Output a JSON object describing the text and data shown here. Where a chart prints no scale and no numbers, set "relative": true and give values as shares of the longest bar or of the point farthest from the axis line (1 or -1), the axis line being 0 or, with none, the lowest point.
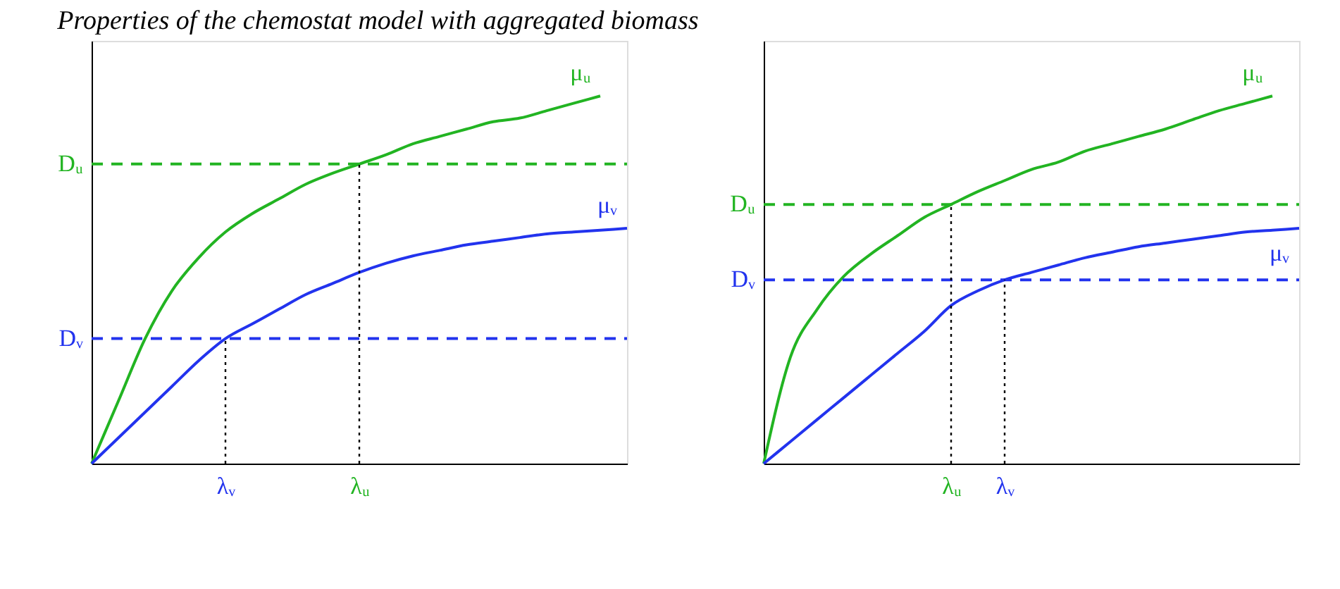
{
  "chart_data": [
    {
      "type": "line",
      "title": "Properties of the chemostat model with aggregated biomass",
      "relative": true,
      "tick_labels": "x",
      "grid": false,
      "legend": false,
      "categories": [
        null,
        null,
        null,
        null,
        null,
        "λᵥ",
        null,
        null,
        null,
        null,
        "λᵤ",
        null,
        null,
        null,
        null,
        null,
        null,
        null,
        null,
        null,
        null
      ],
      "series": [
        {
          "name": "μᵤ",
          "color": "#22b422",
          "values": [
            0,
            0.17,
            0.34,
            0.47,
            0.56,
            0.63,
            0.68,
            0.72,
            0.76,
            0.79,
            0.815,
            0.84,
            0.87,
            0.89,
            0.91,
            0.93,
            0.94,
            0.96,
            0.98,
            1,
            null
          ]
        },
        {
          "name": "μᵥ",
          "color": "#2233ee",
          "values": [
            0,
            0.07,
            0.14,
            0.21,
            0.28,
            0.34,
            0.38,
            0.42,
            0.46,
            0.49,
            0.52,
            0.545,
            0.565,
            0.58,
            0.595,
            0.605,
            0.615,
            0.625,
            0.63,
            0.635,
            0.64
          ]
        }
      ],
      "ref_lines": [
        {
          "axis": "y",
          "value": 0.815,
          "label": "Dᵤ",
          "color": "#22b422",
          "line_style": "dashed"
        },
        {
          "axis": "y",
          "value": 0.34,
          "label": "Dᵥ",
          "color": "#2233ee",
          "line_style": "dashed"
        },
        {
          "axis": "x",
          "value": "λᵥ",
          "color": "#000000",
          "line_style": "dotted"
        },
        {
          "axis": "x",
          "value": "λᵤ",
          "color": "#000000",
          "line_style": "dotted"
        }
      ]
    },
    {
      "type": "line",
      "relative": true,
      "tick_labels": "x",
      "grid": false,
      "legend": false,
      "categories": [
        null,
        null,
        null,
        null,
        null,
        null,
        null,
        "λᵤ",
        null,
        "λᵥ",
        null,
        null,
        null,
        null,
        null,
        null,
        null,
        null,
        null,
        null,
        null
      ],
      "series": [
        {
          "name": "μᵤ",
          "color": "#22b422",
          "values": [
            0,
            0.29,
            0.42,
            0.51,
            0.57,
            0.62,
            0.67,
            0.705,
            0.74,
            0.77,
            0.8,
            0.82,
            0.85,
            0.87,
            0.89,
            0.91,
            0.935,
            0.96,
            0.98,
            1,
            null
          ]
        },
        {
          "name": "μᵥ",
          "color": "#2233ee",
          "values": [
            0,
            0.06,
            0.12,
            0.18,
            0.24,
            0.3,
            0.36,
            0.43,
            0.47,
            0.5,
            0.52,
            0.54,
            0.56,
            0.575,
            0.59,
            0.6,
            0.61,
            0.62,
            0.63,
            0.635,
            0.64
          ]
        }
      ],
      "ref_lines": [
        {
          "axis": "y",
          "value": 0.705,
          "label": "Dᵤ",
          "color": "#22b422",
          "line_style": "dashed"
        },
        {
          "axis": "y",
          "value": 0.5,
          "label": "Dᵥ",
          "color": "#2233ee",
          "line_style": "dashed"
        },
        {
          "axis": "x",
          "value": "λᵤ",
          "color": "#000000",
          "line_style": "dotted"
        },
        {
          "axis": "x",
          "value": "λᵥ",
          "color": "#000000",
          "line_style": "dotted"
        }
      ]
    }
  ]
}
